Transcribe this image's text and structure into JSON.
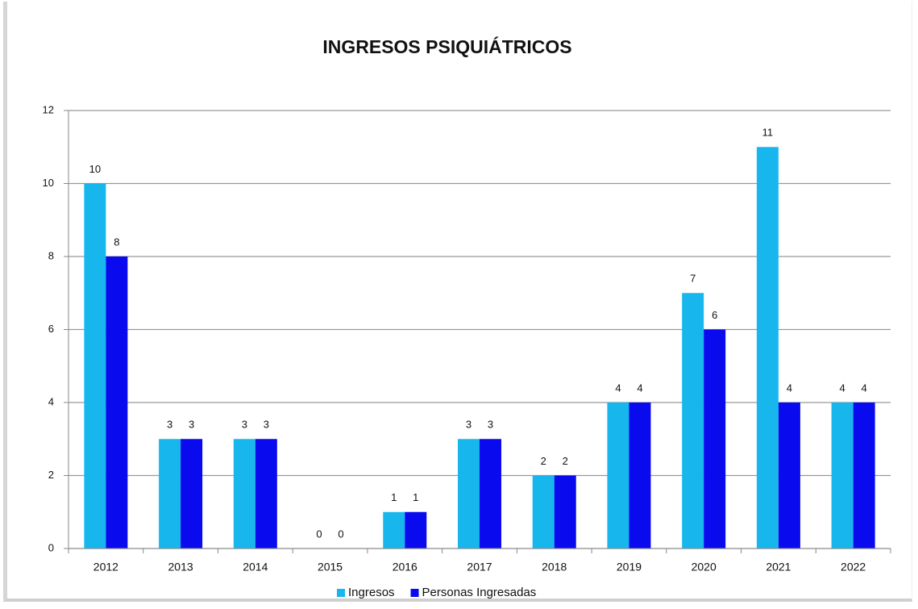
{
  "chart_data": {
    "type": "bar",
    "title": "INGRESOS PSIQUIÁTRICOS",
    "categories": [
      "2012",
      "2013",
      "2014",
      "2015",
      "2016",
      "2017",
      "2018",
      "2019",
      "2020",
      "2021",
      "2022"
    ],
    "series": [
      {
        "name": "Ingresos",
        "color": "#17b7ee",
        "values": [
          10,
          3,
          3,
          0,
          1,
          3,
          2,
          4,
          7,
          11,
          4
        ]
      },
      {
        "name": "Personas Ingresadas",
        "color": "#0a0aee",
        "values": [
          8,
          3,
          3,
          0,
          1,
          3,
          2,
          4,
          6,
          4,
          4
        ]
      }
    ],
    "ylim": [
      0,
      12
    ],
    "yticks": [
      0,
      2,
      4,
      6,
      8,
      10,
      12
    ],
    "grid": true,
    "legend": "bottom"
  }
}
